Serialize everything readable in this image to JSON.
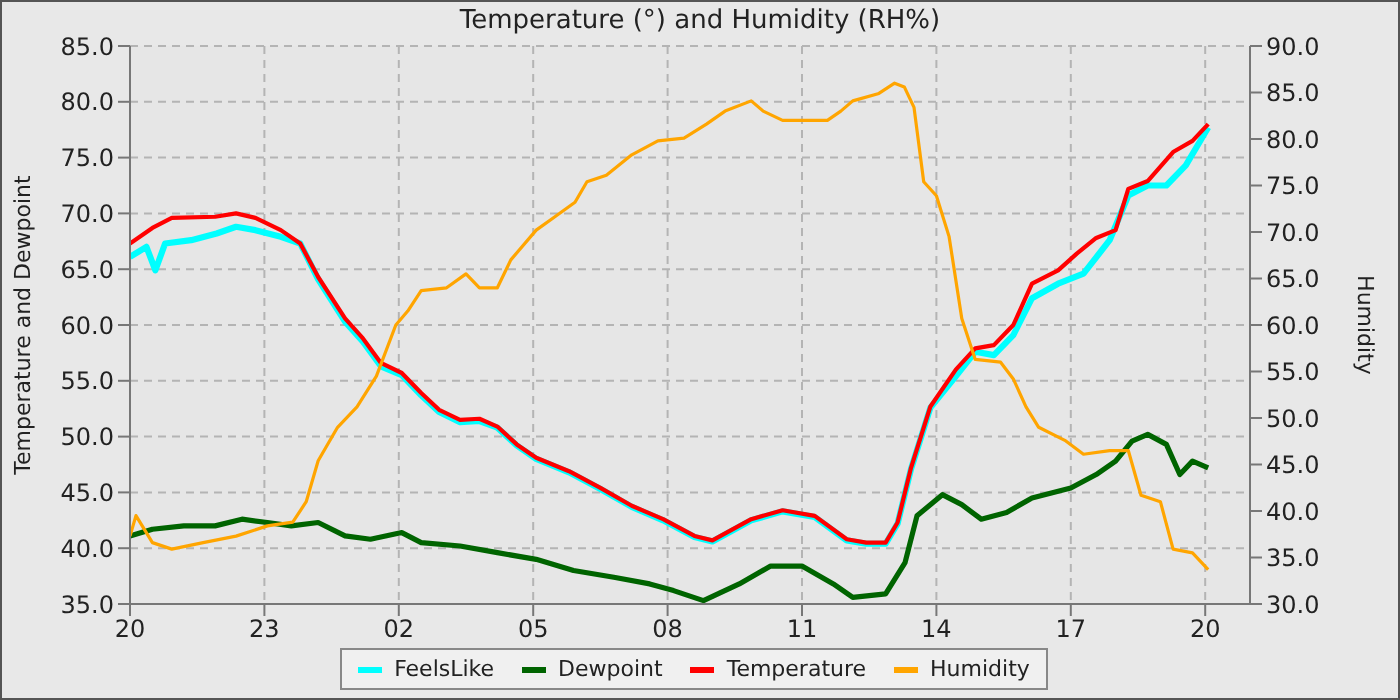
{
  "chart_data": {
    "type": "line",
    "title": "Temperature (°) and Humidity (RH%)",
    "ylabel": "Temperature and Dewpoint",
    "y2label": "Humidity",
    "xlim": [
      "--01-01T20:00",
      "--01-02T21:00"
    ],
    "xticks": [
      {
        "value": "--01-01T20:00",
        "label": "20"
      },
      {
        "value": "--01-01T23:00",
        "label": "23"
      },
      {
        "value": "--01-02T02:00",
        "label": "02"
      },
      {
        "value": "--01-02T05:00",
        "label": "05"
      },
      {
        "value": "--01-02T08:00",
        "label": "08"
      },
      {
        "value": "--01-02T11:00",
        "label": "11"
      },
      {
        "value": "--01-02T14:00",
        "label": "14"
      },
      {
        "value": "--01-02T17:00",
        "label": "17"
      },
      {
        "value": "--01-02T20:00",
        "label": "20"
      }
    ],
    "ylim": [
      35,
      85
    ],
    "yticks": [
      {
        "value": 35,
        "label": "35.0"
      },
      {
        "value": 40,
        "label": "40.0"
      },
      {
        "value": 45,
        "label": "45.0"
      },
      {
        "value": 50,
        "label": "50.0"
      },
      {
        "value": 55,
        "label": "55.0"
      },
      {
        "value": 60,
        "label": "60.0"
      },
      {
        "value": 65,
        "label": "65.0"
      },
      {
        "value": 70,
        "label": "70.0"
      },
      {
        "value": 75,
        "label": "75.0"
      },
      {
        "value": 80,
        "label": "80.0"
      },
      {
        "value": 85,
        "label": "85.0"
      }
    ],
    "y2lim": [
      30,
      90
    ],
    "y2ticks": [
      {
        "value": 30,
        "label": "30.0"
      },
      {
        "value": 35,
        "label": "35.0"
      },
      {
        "value": 40,
        "label": "40.0"
      },
      {
        "value": 45,
        "label": "45.0"
      },
      {
        "value": 50,
        "label": "50.0"
      },
      {
        "value": 55,
        "label": "55.0"
      },
      {
        "value": 60,
        "label": "60.0"
      },
      {
        "value": 65,
        "label": "65.0"
      },
      {
        "value": 70,
        "label": "70.0"
      },
      {
        "value": 75,
        "label": "75.0"
      },
      {
        "value": 80,
        "label": "80.0"
      },
      {
        "value": 85,
        "label": "85.0"
      },
      {
        "value": 90,
        "label": "90.0"
      }
    ],
    "grid": true,
    "legend": "bottom",
    "marker": "none",
    "line_style": "solid",
    "series": [
      {
        "name": "FeelsLike",
        "color": "#00ffff",
        "x": [
          "--01-01T20:00",
          "--01-01T20:22",
          "--01-01T20:34",
          "--01-01T20:47",
          "--01-01T21:22",
          "--01-01T21:56",
          "--01-01T22:22",
          "--01-01T22:48",
          "--01-01T23:22",
          "--01-01T23:48",
          "--01-02T00:12",
          "--01-02T00:48",
          "--01-02T01:12",
          "--01-02T01:36",
          "--01-02T02:04",
          "--01-02T02:30",
          "--01-02T02:54",
          "--01-02T03:22",
          "--01-02T03:48",
          "--01-02T04:12",
          "--01-02T04:38",
          "--01-02T05:04",
          "--01-02T05:48",
          "--01-02T06:30",
          "--01-02T07:12",
          "--01-02T07:54",
          "--01-02T08:36",
          "--01-02T09:00",
          "--01-02T09:52",
          "--01-02T10:34",
          "--01-02T11:17",
          "--01-02T12:00",
          "--01-02T12:26",
          "--01-02T12:52",
          "--01-02T13:08",
          "--01-02T13:26",
          "--01-02T13:52",
          "--01-02T14:26",
          "--01-02T14:52",
          "--01-02T15:17",
          "--01-02T15:43",
          "--01-02T16:08",
          "--01-02T16:43",
          "--01-02T17:17",
          "--01-02T17:52",
          "--01-02T18:17",
          "--01-02T18:43",
          "--01-02T19:08",
          "--01-02T19:34",
          "--01-02T20:04"
        ],
        "values": [
          66.1,
          67.0,
          64.9,
          67.3,
          67.6,
          68.2,
          68.8,
          68.5,
          67.9,
          67.3,
          64.1,
          60.3,
          58.5,
          56.3,
          55.5,
          53.7,
          52.2,
          51.3,
          51.4,
          50.8,
          49.2,
          48.0,
          46.8,
          45.3,
          43.7,
          42.5,
          41.0,
          40.6,
          42.5,
          43.3,
          42.8,
          40.7,
          40.4,
          40.4,
          42.2,
          47.1,
          52.6,
          55.4,
          57.6,
          57.3,
          59.1,
          62.4,
          63.7,
          64.6,
          67.6,
          71.6,
          72.5,
          72.5,
          74.3,
          77.7
        ]
      },
      {
        "name": "Dewpoint",
        "color": "#006400",
        "x": [
          "--01-01T20:00",
          "--01-01T20:30",
          "--01-01T21:12",
          "--01-01T21:54",
          "--01-01T22:30",
          "--01-01T23:04",
          "--01-01T23:36",
          "--01-02T00:12",
          "--01-02T00:48",
          "--01-02T01:22",
          "--01-02T02:04",
          "--01-02T02:30",
          "--01-02T03:22",
          "--01-02T04:12",
          "--01-02T05:04",
          "--01-02T05:54",
          "--01-02T06:48",
          "--01-02T07:36",
          "--01-02T08:08",
          "--01-02T08:48",
          "--01-02T09:36",
          "--01-02T10:18",
          "--01-02T11:00",
          "--01-02T11:42",
          "--01-02T12:08",
          "--01-02T12:52",
          "--01-02T13:18",
          "--01-02T13:34",
          "--01-02T14:08",
          "--01-02T14:34",
          "--01-02T15:00",
          "--01-02T15:34",
          "--01-02T16:08",
          "--01-02T17:00",
          "--01-02T17:34",
          "--01-02T18:00",
          "--01-02T18:22",
          "--01-02T18:43",
          "--01-02T19:08",
          "--01-02T19:26",
          "--01-02T19:43",
          "--01-02T20:04"
        ],
        "values": [
          41.1,
          41.7,
          42.0,
          42.0,
          42.6,
          42.3,
          42.0,
          42.3,
          41.1,
          40.8,
          41.4,
          40.5,
          40.2,
          39.6,
          39.0,
          38.0,
          37.4,
          36.8,
          36.2,
          35.3,
          36.8,
          38.4,
          38.4,
          36.8,
          35.6,
          35.9,
          38.7,
          42.9,
          44.8,
          43.9,
          42.6,
          43.2,
          44.5,
          45.4,
          46.6,
          47.8,
          49.6,
          50.2,
          49.3,
          46.6,
          47.8,
          47.2
        ]
      },
      {
        "name": "Temperature",
        "color": "#ff0000",
        "x": [
          "--01-01T20:00",
          "--01-01T20:30",
          "--01-01T20:56",
          "--01-01T21:54",
          "--01-01T22:22",
          "--01-01T22:48",
          "--01-01T23:22",
          "--01-01T23:48",
          "--01-02T00:12",
          "--01-02T00:48",
          "--01-02T01:12",
          "--01-02T01:36",
          "--01-02T02:04",
          "--01-02T02:30",
          "--01-02T02:54",
          "--01-02T03:22",
          "--01-02T03:48",
          "--01-02T04:12",
          "--01-02T04:38",
          "--01-02T05:04",
          "--01-02T05:48",
          "--01-02T06:30",
          "--01-02T07:12",
          "--01-02T07:54",
          "--01-02T08:36",
          "--01-02T09:00",
          "--01-02T09:52",
          "--01-02T10:34",
          "--01-02T11:17",
          "--01-02T12:00",
          "--01-02T12:26",
          "--01-02T12:52",
          "--01-02T13:08",
          "--01-02T13:26",
          "--01-02T13:52",
          "--01-02T14:26",
          "--01-02T14:52",
          "--01-02T15:17",
          "--01-02T15:43",
          "--01-02T16:08",
          "--01-02T16:43",
          "--01-02T17:08",
          "--01-02T17:34",
          "--01-02T18:00",
          "--01-02T18:17",
          "--01-02T18:43",
          "--01-02T19:17",
          "--01-02T19:43",
          "--01-02T20:04"
        ],
        "values": [
          67.3,
          68.7,
          69.6,
          69.7,
          70.0,
          69.6,
          68.5,
          67.3,
          64.3,
          60.6,
          58.8,
          56.6,
          55.7,
          53.9,
          52.4,
          51.5,
          51.6,
          50.9,
          49.3,
          48.1,
          46.9,
          45.4,
          43.8,
          42.6,
          41.1,
          40.7,
          42.6,
          43.4,
          42.9,
          40.8,
          40.5,
          40.5,
          42.3,
          47.2,
          52.7,
          56.0,
          57.9,
          58.2,
          60.0,
          63.7,
          64.9,
          66.4,
          67.8,
          68.5,
          72.2,
          72.9,
          75.5,
          76.5,
          78.0
        ]
      },
      {
        "name": "Humidity",
        "color": "#ffa500",
        "axis": "y2",
        "x": [
          "--01-01T20:00",
          "--01-01T20:08",
          "--01-01T20:30",
          "--01-01T20:56",
          "--01-01T21:38",
          "--01-01T22:22",
          "--01-01T23:04",
          "--01-01T23:38",
          "--01-01T23:56",
          "--01-02T00:12",
          "--01-02T00:38",
          "--01-02T01:04",
          "--01-02T01:30",
          "--01-02T01:56",
          "--01-02T02:12",
          "--01-02T02:30",
          "--01-02T03:04",
          "--01-02T03:30",
          "--01-02T03:48",
          "--01-02T04:12",
          "--01-02T04:30",
          "--01-02T05:04",
          "--01-02T05:30",
          "--01-02T05:56",
          "--01-02T06:12",
          "--01-02T06:38",
          "--01-02T07:12",
          "--01-02T07:47",
          "--01-02T08:22",
          "--01-02T08:52",
          "--01-02T09:17",
          "--01-02T09:52",
          "--01-02T10:08",
          "--01-02T10:34",
          "--01-02T11:34",
          "--01-02T11:52",
          "--01-02T12:08",
          "--01-02T12:43",
          "--01-02T13:04",
          "--01-02T13:17",
          "--01-02T13:30",
          "--01-02T13:43",
          "--01-02T14:00",
          "--01-02T14:17",
          "--01-02T14:34",
          "--01-02T14:52",
          "--01-02T15:26",
          "--01-02T15:43",
          "--01-02T16:00",
          "--01-02T16:17",
          "--01-02T16:52",
          "--01-02T17:17",
          "--01-02T17:52",
          "--01-02T18:17",
          "--01-02T18:34",
          "--01-02T19:00",
          "--01-02T19:17",
          "--01-02T19:43",
          "--01-02T20:04"
        ],
        "values": [
          37.3,
          39.5,
          36.6,
          35.9,
          36.6,
          37.3,
          38.4,
          38.8,
          41.0,
          45.4,
          49.0,
          51.2,
          54.5,
          60.0,
          61.5,
          63.7,
          64.0,
          65.5,
          64.0,
          64.0,
          67.0,
          70.2,
          71.7,
          73.2,
          75.4,
          76.1,
          78.3,
          79.8,
          80.1,
          81.6,
          83.0,
          84.1,
          83.0,
          82.0,
          82.0,
          83.0,
          84.1,
          84.9,
          86.0,
          85.6,
          83.4,
          75.4,
          73.9,
          69.5,
          60.7,
          56.3,
          56.0,
          54.2,
          51.2,
          49.0,
          47.6,
          46.1,
          46.5,
          46.5,
          41.7,
          41.0,
          35.9,
          35.5,
          33.7
        ]
      }
    ]
  }
}
